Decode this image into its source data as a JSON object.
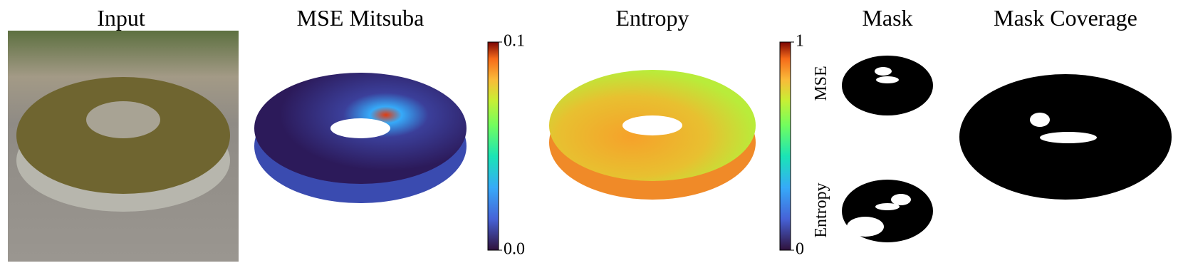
{
  "panels": [
    {
      "title": "Input"
    },
    {
      "title": "MSE Mitsuba",
      "colorbar": {
        "lim": [
          0,
          0.1
        ],
        "ticks": [
          {
            "value": 0,
            "label": "0.0"
          },
          0.1
        ]
      }
    },
    {
      "title": "Entropy",
      "colorbar": {
        "lim": [
          0,
          1
        ],
        "ticks": [
          0,
          1
        ]
      }
    },
    {
      "title": "Mask",
      "row_labels": [
        "MSE",
        "Entropy"
      ]
    },
    {
      "title": "Mask Coverage"
    }
  ]
}
